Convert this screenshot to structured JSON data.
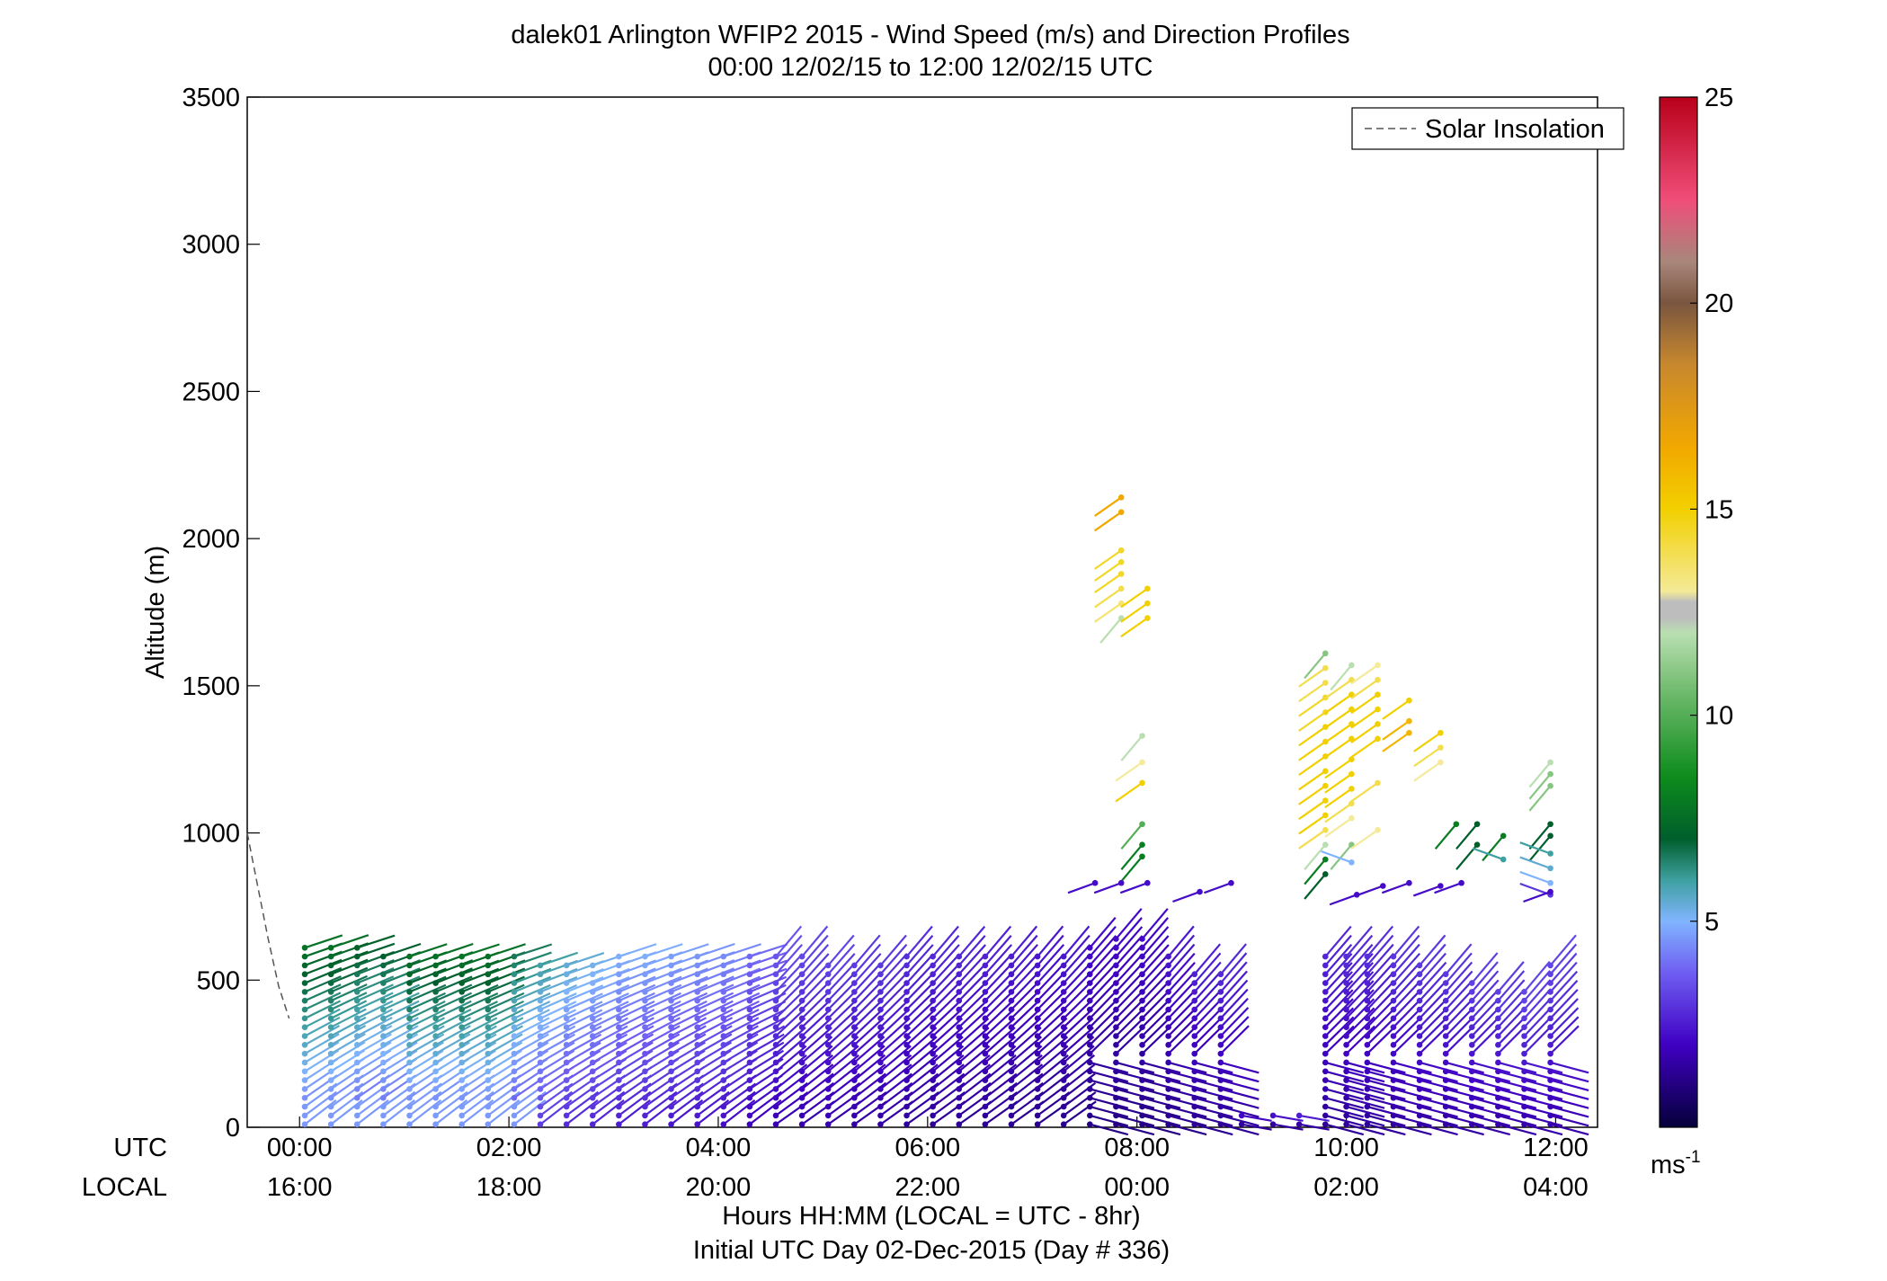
{
  "chart_data": {
    "type": "wind-barb-profile",
    "title": "dalek01 Arlington WFIP2 2015 - Wind Speed (m/s) and Direction Profiles",
    "subtitle": "00:00 12/02/15 to 12:00 12/02/15  UTC",
    "ylabel": "Altitude (m)",
    "xlabel": "Hours HH:MM  (LOCAL = UTC - 8hr)",
    "xlabel2": "Initial UTC Day 02-Dec-2015 (Day # 336)",
    "xlim": [
      -0.5,
      12.4
    ],
    "ylim": [
      0,
      3500
    ],
    "y_ticks": [
      "0",
      "500",
      "1000",
      "1500",
      "2000",
      "2500",
      "3000",
      "3500"
    ],
    "x_tick_values": [
      0,
      2,
      4,
      6,
      8,
      10,
      12
    ],
    "utc_row_label": "UTC",
    "local_row_label": "LOCAL",
    "utc_ticks": [
      "00:00",
      "02:00",
      "04:00",
      "06:00",
      "08:00",
      "10:00",
      "12:00"
    ],
    "local_ticks": [
      "16:00",
      "18:00",
      "20:00",
      "22:00",
      "00:00",
      "02:00",
      "04:00"
    ],
    "legend": {
      "label": "Solar Insolation",
      "placement": "top-right"
    },
    "colorbar": {
      "min": 0,
      "max": 25,
      "ticks": [
        "5",
        "10",
        "15",
        "20",
        "25"
      ],
      "unit": "ms-1",
      "unit_base": "ms",
      "unit_exp": "-1"
    },
    "solar_insolation_line": {
      "x": [
        -0.5,
        -0.4,
        -0.3,
        -0.2,
        -0.1
      ],
      "y": [
        1000,
        820,
        640,
        480,
        370
      ]
    },
    "profiles": [
      {
        "t": 0.05,
        "top": 620,
        "speed": 7
      },
      {
        "t": 0.3,
        "top": 630,
        "speed": 7
      },
      {
        "t": 0.55,
        "top": 610,
        "speed": 6.5
      },
      {
        "t": 0.8,
        "top": 600,
        "speed": 6.5
      },
      {
        "t": 1.05,
        "top": 590,
        "speed": 7
      },
      {
        "t": 1.3,
        "top": 600,
        "speed": 7
      },
      {
        "t": 1.55,
        "top": 580,
        "speed": 7
      },
      {
        "t": 1.8,
        "top": 590,
        "speed": 7
      },
      {
        "t": 2.05,
        "top": 580,
        "speed": 6
      },
      {
        "t": 2.3,
        "top": 570,
        "speed": 5.5
      },
      {
        "t": 2.55,
        "top": 560,
        "speed": 5
      },
      {
        "t": 2.8,
        "top": 570,
        "speed": 4.8
      },
      {
        "t": 3.05,
        "top": 590,
        "speed": 4.5
      },
      {
        "t": 3.3,
        "top": 590,
        "speed": 4.5
      },
      {
        "t": 3.55,
        "top": 590,
        "speed": 4.3
      },
      {
        "t": 3.8,
        "top": 600,
        "speed": 4.2
      },
      {
        "t": 4.05,
        "top": 590,
        "speed": 4
      },
      {
        "t": 4.3,
        "top": 580,
        "speed": 3.5
      },
      {
        "t": 4.55,
        "top": 580,
        "speed": 3.2
      },
      {
        "t": 4.8,
        "top": 580,
        "speed": 3
      },
      {
        "t": 5.05,
        "top": 570,
        "speed": 3
      },
      {
        "t": 5.3,
        "top": 560,
        "speed": 2.8
      },
      {
        "t": 5.55,
        "top": 570,
        "speed": 2.8
      },
      {
        "t": 5.8,
        "top": 590,
        "speed": 2.6
      },
      {
        "t": 6.05,
        "top": 590,
        "speed": 2.5
      },
      {
        "t": 6.3,
        "top": 600,
        "speed": 2.5
      },
      {
        "t": 6.55,
        "top": 590,
        "speed": 2.4
      },
      {
        "t": 6.8,
        "top": 580,
        "speed": 2.3
      },
      {
        "t": 7.05,
        "top": 580,
        "speed": 2.2
      },
      {
        "t": 7.3,
        "top": 580,
        "speed": 2.2
      },
      {
        "t": 7.55,
        "top": 630,
        "speed": 2
      },
      {
        "t": 7.8,
        "top": 650,
        "speed": 2
      },
      {
        "t": 8.05,
        "top": 650,
        "speed": 2
      },
      {
        "t": 8.3,
        "top": 580,
        "speed": 2.2
      },
      {
        "t": 8.55,
        "top": 540,
        "speed": 2.4
      },
      {
        "t": 8.8,
        "top": 520,
        "speed": 2.5
      },
      {
        "t": 9.0,
        "top": 60,
        "speed": 2.3
      },
      {
        "t": 9.3,
        "top": 50,
        "speed": 2.3
      },
      {
        "t": 9.55,
        "top": 40,
        "speed": 2.3
      },
      {
        "t": 9.8,
        "top": 600,
        "speed": 2.5
      },
      {
        "t": 10.0,
        "top": 600,
        "speed": 2.6
      },
      {
        "t": 10.2,
        "top": 590,
        "speed": 2.6
      },
      {
        "t": 10.45,
        "top": 590,
        "speed": 2.7
      },
      {
        "t": 10.7,
        "top": 570,
        "speed": 2.8
      },
      {
        "t": 10.95,
        "top": 540,
        "speed": 2.8
      },
      {
        "t": 11.2,
        "top": 500,
        "speed": 2.9
      },
      {
        "t": 11.45,
        "top": 480,
        "speed": 2.9
      },
      {
        "t": 11.7,
        "top": 460,
        "speed": 3
      },
      {
        "t": 11.95,
        "top": 560,
        "speed": 3
      }
    ],
    "upper_barbs": [
      {
        "t": 7.85,
        "z": 2140,
        "speed": 16.5
      },
      {
        "t": 7.85,
        "z": 2090,
        "speed": 16.5
      },
      {
        "t": 7.85,
        "z": 1960,
        "speed": 14.5
      },
      {
        "t": 7.85,
        "z": 1920,
        "speed": 14.5
      },
      {
        "t": 7.85,
        "z": 1880,
        "speed": 14.5
      },
      {
        "t": 7.85,
        "z": 1830,
        "speed": 14
      },
      {
        "t": 7.85,
        "z": 1780,
        "speed": 13.5
      },
      {
        "t": 7.85,
        "z": 1730,
        "speed": 12
      },
      {
        "t": 8.1,
        "z": 1830,
        "speed": 15
      },
      {
        "t": 8.1,
        "z": 1780,
        "speed": 15
      },
      {
        "t": 8.1,
        "z": 1730,
        "speed": 15
      },
      {
        "t": 8.05,
        "z": 1330,
        "speed": 12
      },
      {
        "t": 8.05,
        "z": 1240,
        "speed": 13
      },
      {
        "t": 8.05,
        "z": 1170,
        "speed": 15
      },
      {
        "t": 8.05,
        "z": 1030,
        "speed": 10
      },
      {
        "t": 8.05,
        "z": 960,
        "speed": 8
      },
      {
        "t": 8.05,
        "z": 920,
        "speed": 8
      },
      {
        "t": 9.8,
        "z": 1610,
        "speed": 11
      },
      {
        "t": 9.8,
        "z": 1560,
        "speed": 14
      },
      {
        "t": 9.8,
        "z": 1510,
        "speed": 14
      },
      {
        "t": 9.8,
        "z": 1460,
        "speed": 14.5
      },
      {
        "t": 9.8,
        "z": 1410,
        "speed": 14.5
      },
      {
        "t": 9.8,
        "z": 1360,
        "speed": 15
      },
      {
        "t": 9.8,
        "z": 1310,
        "speed": 15
      },
      {
        "t": 9.8,
        "z": 1260,
        "speed": 15
      },
      {
        "t": 9.8,
        "z": 1210,
        "speed": 15
      },
      {
        "t": 9.8,
        "z": 1160,
        "speed": 15
      },
      {
        "t": 9.8,
        "z": 1110,
        "speed": 15
      },
      {
        "t": 9.8,
        "z": 1060,
        "speed": 15
      },
      {
        "t": 9.8,
        "z": 1010,
        "speed": 14
      },
      {
        "t": 9.8,
        "z": 960,
        "speed": 12
      },
      {
        "t": 9.8,
        "z": 910,
        "speed": 8
      },
      {
        "t": 9.8,
        "z": 860,
        "speed": 7
      },
      {
        "t": 10.05,
        "z": 1570,
        "speed": 12
      },
      {
        "t": 10.05,
        "z": 1520,
        "speed": 14
      },
      {
        "t": 10.05,
        "z": 1470,
        "speed": 15
      },
      {
        "t": 10.05,
        "z": 1420,
        "speed": 15
      },
      {
        "t": 10.05,
        "z": 1370,
        "speed": 15
      },
      {
        "t": 10.05,
        "z": 1320,
        "speed": 15
      },
      {
        "t": 10.05,
        "z": 1250,
        "speed": 15
      },
      {
        "t": 10.05,
        "z": 1200,
        "speed": 15
      },
      {
        "t": 10.05,
        "z": 1150,
        "speed": 15
      },
      {
        "t": 10.05,
        "z": 1100,
        "speed": 14
      },
      {
        "t": 10.05,
        "z": 1050,
        "speed": 13
      },
      {
        "t": 10.05,
        "z": 960,
        "speed": 11
      },
      {
        "t": 10.05,
        "z": 900,
        "speed": 5
      },
      {
        "t": 10.3,
        "z": 1570,
        "speed": 13
      },
      {
        "t": 10.3,
        "z": 1520,
        "speed": 14
      },
      {
        "t": 10.3,
        "z": 1470,
        "speed": 15
      },
      {
        "t": 10.3,
        "z": 1420,
        "speed": 15
      },
      {
        "t": 10.3,
        "z": 1370,
        "speed": 15
      },
      {
        "t": 10.3,
        "z": 1320,
        "speed": 15
      },
      {
        "t": 10.3,
        "z": 1170,
        "speed": 14
      },
      {
        "t": 10.3,
        "z": 1010,
        "speed": 13
      },
      {
        "t": 10.6,
        "z": 1450,
        "speed": 15
      },
      {
        "t": 10.6,
        "z": 1380,
        "speed": 16
      },
      {
        "t": 10.6,
        "z": 1340,
        "speed": 16
      },
      {
        "t": 10.9,
        "z": 1340,
        "speed": 15
      },
      {
        "t": 10.9,
        "z": 1290,
        "speed": 14
      },
      {
        "t": 10.9,
        "z": 1240,
        "speed": 13
      },
      {
        "t": 11.05,
        "z": 1030,
        "speed": 8
      },
      {
        "t": 11.25,
        "z": 1030,
        "speed": 7
      },
      {
        "t": 11.25,
        "z": 960,
        "speed": 7
      },
      {
        "t": 11.5,
        "z": 990,
        "speed": 8
      },
      {
        "t": 11.5,
        "z": 910,
        "speed": 6
      },
      {
        "t": 11.95,
        "z": 1240,
        "speed": 12
      },
      {
        "t": 11.95,
        "z": 1200,
        "speed": 11
      },
      {
        "t": 11.95,
        "z": 1160,
        "speed": 11
      },
      {
        "t": 11.95,
        "z": 1030,
        "speed": 7
      },
      {
        "t": 11.95,
        "z": 990,
        "speed": 7
      },
      {
        "t": 11.95,
        "z": 930,
        "speed": 6
      },
      {
        "t": 11.95,
        "z": 880,
        "speed": 5.5
      },
      {
        "t": 11.95,
        "z": 830,
        "speed": 5
      },
      {
        "t": 11.95,
        "z": 790,
        "speed": 3
      }
    ]
  }
}
